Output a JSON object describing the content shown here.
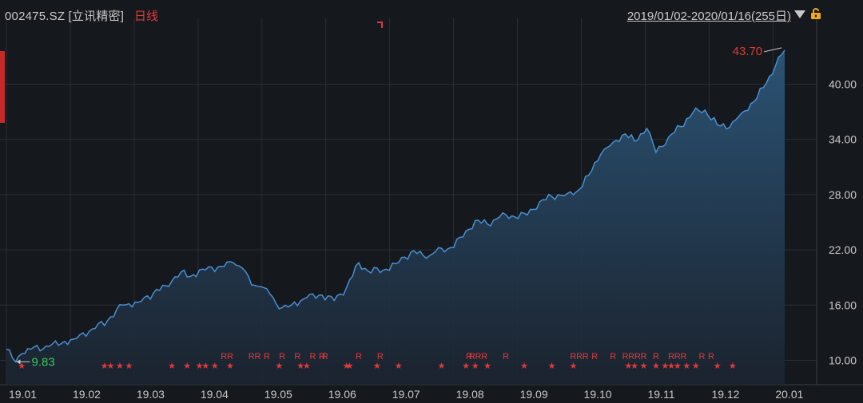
{
  "header": {
    "ticker": "002475.SZ [立讯精密]",
    "period": "日线",
    "range": "2019/01/02-2020/01/16(255日)"
  },
  "colors": {
    "line": "#4a8fd0",
    "fill_top": "#2c5679",
    "price_max": "#e03a3a",
    "price_min": "#33cc55",
    "marker": "#e03a3a",
    "grid": "#2a2f36",
    "text": "#c8c8c8"
  },
  "chart_data": {
    "type": "area",
    "title": "",
    "xlabel": "",
    "ylabel": "",
    "x_tick_labels": [
      "19.01",
      "19.02",
      "19.03",
      "19.04",
      "19.05",
      "19.06",
      "19.07",
      "19.08",
      "19.09",
      "19.10",
      "19.11",
      "19.12",
      "20.01"
    ],
    "y_ticks": [
      10,
      16,
      22,
      28,
      34,
      40
    ],
    "y_tick_labels": [
      "10.00",
      "16.00",
      "22.00",
      "28.00",
      "34.00",
      "40.00"
    ],
    "ylim": [
      7.35,
      46.55
    ],
    "x_index_range": [
      0,
      254
    ],
    "grid": true,
    "annotations": {
      "max": {
        "label": "43.70",
        "value": 43.7,
        "index": 253
      },
      "min": {
        "label": "9.83",
        "value": 9.83,
        "index": 3
      }
    },
    "series": [
      {
        "points": [
          [
            0,
            11.2
          ],
          [
            3,
            9.83
          ],
          [
            5,
            10.7
          ],
          [
            8,
            11.2
          ],
          [
            14,
            11.5
          ],
          [
            22,
            12.3
          ],
          [
            28,
            13.4
          ],
          [
            33,
            14.3
          ],
          [
            38,
            16.0
          ],
          [
            43,
            16.3
          ],
          [
            48,
            17.3
          ],
          [
            52,
            18.1
          ],
          [
            57,
            19.6
          ],
          [
            60,
            19.1
          ],
          [
            64,
            19.9
          ],
          [
            70,
            20.2
          ],
          [
            74,
            20.6
          ],
          [
            77,
            20.0
          ],
          [
            80,
            18.2
          ],
          [
            83,
            18.0
          ],
          [
            86,
            17.2
          ],
          [
            89,
            15.6
          ],
          [
            93,
            16.0
          ],
          [
            98,
            16.8
          ],
          [
            103,
            17.1
          ],
          [
            107,
            16.5
          ],
          [
            111,
            17.9
          ],
          [
            115,
            20.6
          ],
          [
            118,
            19.7
          ],
          [
            123,
            19.8
          ],
          [
            127,
            20.5
          ],
          [
            130,
            21.2
          ],
          [
            133,
            21.9
          ],
          [
            137,
            21.1
          ],
          [
            140,
            21.8
          ],
          [
            144,
            22.1
          ],
          [
            149,
            23.4
          ],
          [
            153,
            25.2
          ],
          [
            157,
            24.8
          ],
          [
            161,
            25.6
          ],
          [
            165,
            25.7
          ],
          [
            170,
            25.8
          ],
          [
            174,
            27.2
          ],
          [
            178,
            27.8
          ],
          [
            183,
            28.1
          ],
          [
            186,
            28.3
          ],
          [
            190,
            30.1
          ],
          [
            194,
            32.4
          ],
          [
            198,
            33.7
          ],
          [
            202,
            34.6
          ],
          [
            205,
            33.8
          ],
          [
            209,
            35.2
          ],
          [
            212,
            32.6
          ],
          [
            216,
            34.2
          ],
          [
            220,
            35.4
          ],
          [
            224,
            36.9
          ],
          [
            228,
            37.2
          ],
          [
            232,
            35.6
          ],
          [
            236,
            35.3
          ],
          [
            240,
            36.9
          ],
          [
            244,
            38.1
          ],
          [
            248,
            40.1
          ],
          [
            251,
            42.0
          ],
          [
            254,
            43.7
          ]
        ]
      }
    ],
    "markers": {
      "star_dates": [
        5,
        32,
        34,
        37,
        40,
        54,
        59,
        63,
        65,
        68,
        73,
        89,
        96,
        98,
        111,
        112,
        121,
        128,
        142,
        150,
        153,
        157,
        169,
        178,
        185,
        203,
        205,
        208,
        212,
        215,
        217,
        219,
        222,
        225,
        232,
        237
      ],
      "r_dates": [
        71,
        73,
        80,
        82,
        85,
        90,
        95,
        100,
        103,
        104,
        115,
        122,
        151,
        152,
        154,
        156,
        163,
        185,
        187,
        189,
        192,
        198,
        202,
        204,
        206,
        208,
        212,
        217,
        219,
        221,
        227,
        230
      ]
    },
    "marker_labels": {
      "star": "★",
      "r": "R"
    }
  }
}
